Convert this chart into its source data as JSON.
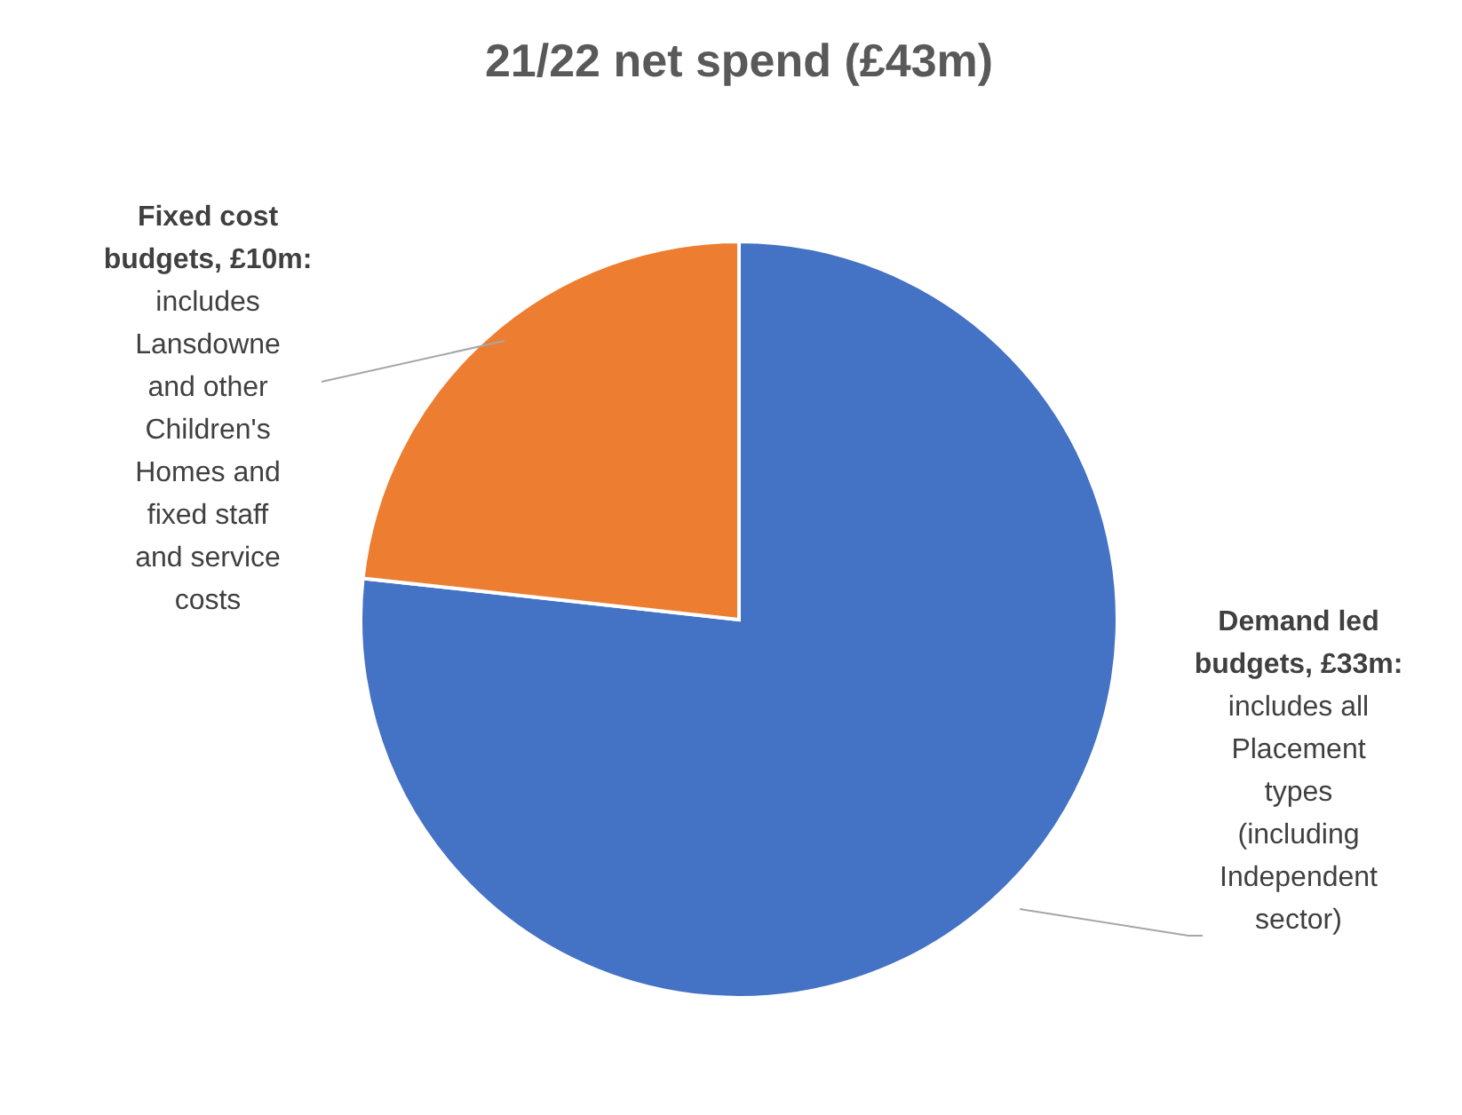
{
  "chart_data": {
    "type": "pie",
    "title": "21/22 net spend (£43m)",
    "categories": [
      "Demand led budgets",
      "Fixed cost budgets"
    ],
    "values": [
      33,
      10
    ],
    "value_labels": [
      "£33m:",
      "£10m:"
    ],
    "colors": [
      "#4472c4",
      "#ed7d31"
    ],
    "annotations": [
      "includes all Placement types (including Independent sector)",
      "includes Lansdowne and other Children's Homes and fixed staff and service costs"
    ],
    "legend": false
  }
}
